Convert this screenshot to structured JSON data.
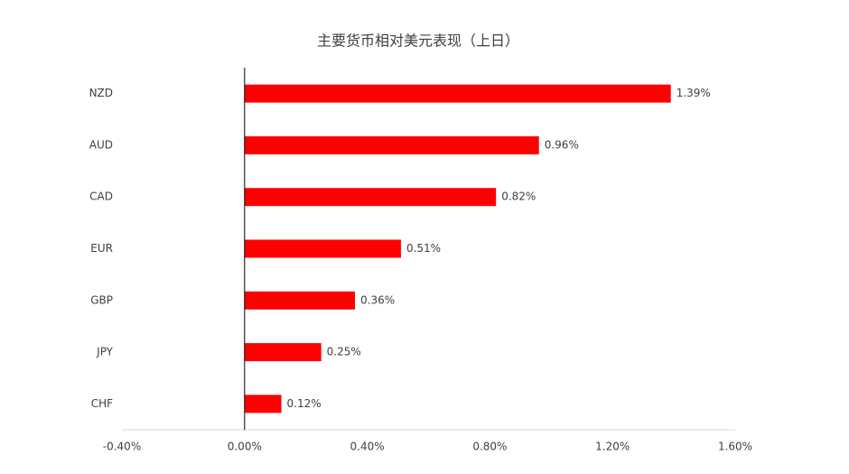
{
  "chart_data": {
    "type": "bar",
    "orientation": "horizontal",
    "title": "主要货币相对美元表现（上日）",
    "categories": [
      "NZD",
      "AUD",
      "CAD",
      "EUR",
      "GBP",
      "JPY",
      "CHF"
    ],
    "values": [
      1.39,
      0.96,
      0.82,
      0.51,
      0.36,
      0.25,
      0.12
    ],
    "value_labels": [
      "1.39%",
      "0.96%",
      "0.82%",
      "0.51%",
      "0.36%",
      "0.25%",
      "0.12%"
    ],
    "color": "#ff0000",
    "xlim": [
      -0.4,
      1.6
    ],
    "xticks": [
      {
        "value": -0.4,
        "label": "-0.40%"
      },
      {
        "value": 0,
        "label": "0.00%"
      },
      {
        "value": 0.4,
        "label": "0.40%"
      },
      {
        "value": 0.8,
        "label": "0.80%"
      },
      {
        "value": 1.2,
        "label": "1.20%"
      },
      {
        "value": 1.6,
        "label": "1.60%"
      }
    ],
    "grid": false
  }
}
